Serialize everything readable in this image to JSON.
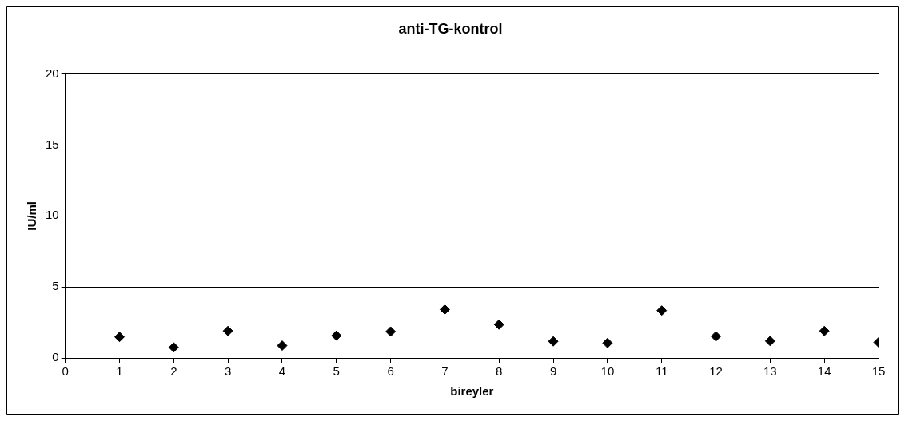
{
  "chart_data": {
    "type": "scatter",
    "title": "anti-TG-kontrol",
    "xlabel": "bireyler",
    "ylabel": "IU/ml",
    "x": [
      1,
      2,
      3,
      4,
      5,
      6,
      7,
      8,
      9,
      10,
      11,
      12,
      13,
      14,
      15
    ],
    "series": [
      {
        "color": "#000000",
        "values": [
          1.48,
          0.74,
          1.9,
          0.87,
          1.57,
          1.86,
          3.41,
          2.35,
          1.17,
          1.05,
          3.34,
          1.52,
          1.19,
          1.9,
          1.1
        ]
      }
    ],
    "xlim": [
      0,
      15
    ],
    "xticks": [
      0,
      1,
      2,
      3,
      4,
      5,
      6,
      7,
      8,
      9,
      10,
      11,
      12,
      13,
      14,
      15
    ],
    "ylim": [
      0,
      20
    ],
    "yticks": [
      0,
      5,
      10,
      15,
      20
    ],
    "grid": "y",
    "legend": false,
    "marker": "diamond"
  }
}
